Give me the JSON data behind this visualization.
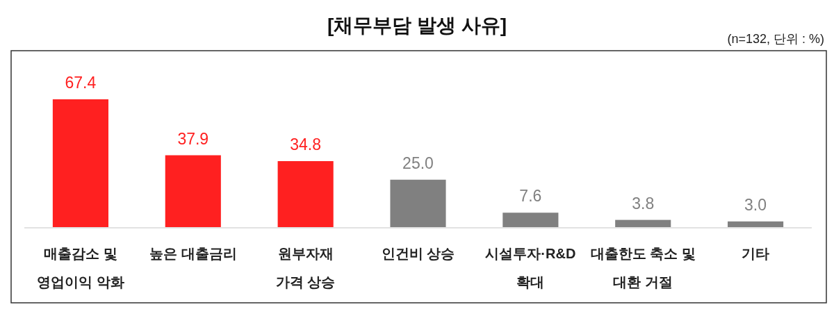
{
  "chart_data": {
    "type": "bar",
    "title": "[채무부담 발생 사유]",
    "subtitle": "(n=132, 단위 : %)",
    "categories": [
      "매출감소 및\n영업이익 악화",
      "높은 대출금리",
      "원부자재\n가격 상승",
      "인건비 상승",
      "시설투자·R&D\n확대",
      "대출한도 축소 및\n대환 거절",
      "기타"
    ],
    "values": [
      67.4,
      37.9,
      34.8,
      25.0,
      7.6,
      3.8,
      3.0
    ],
    "colors": [
      "#ff2020",
      "#ff2020",
      "#ff2020",
      "#808080",
      "#808080",
      "#808080",
      "#808080"
    ],
    "value_labels": [
      "67.4",
      "37.9",
      "34.8",
      "25.0",
      "7.6",
      "3.8",
      "3.0"
    ]
  }
}
